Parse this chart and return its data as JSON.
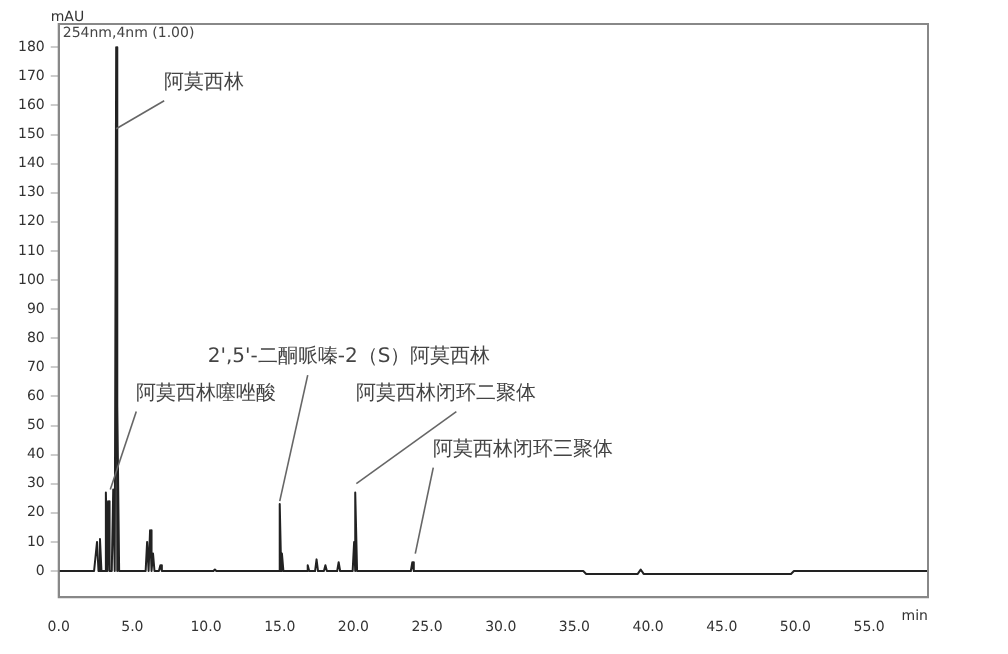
{
  "chart_data": {
    "type": "line",
    "xlabel": "min",
    "ylabel": "mAU",
    "x": [
      0,
      2.4,
      2.5,
      2.6,
      2.7,
      2.8,
      2.9,
      3.1,
      3.2,
      3.3,
      3.35,
      3.45,
      3.6,
      3.7,
      3.8,
      3.85,
      3.9,
      3.95,
      4.0,
      4.1,
      5.9,
      6.0,
      6.1,
      6.2,
      6.3,
      6.4,
      6.5,
      6.8,
      6.9,
      7.0,
      10.5,
      10.6,
      10.7,
      14.9,
      15.0,
      15.1,
      15.15,
      15.25,
      16.8,
      16.9,
      17.0,
      17.4,
      17.5,
      17.6,
      18.0,
      18.1,
      18.2,
      18.9,
      19.0,
      19.1,
      19.95,
      20.05,
      20.1,
      20.15,
      20.25,
      23.9,
      24.0,
      24.1,
      35.6,
      35.8,
      39.3,
      39.5,
      39.7,
      49.7,
      49.9,
      59
    ],
    "series": [
      {
        "color": "#222222",
        "values": [
          0,
          0,
          0,
          10,
          0,
          11,
          0,
          0,
          27,
          0,
          24,
          0,
          0,
          28,
          0,
          0,
          180,
          0,
          57,
          0,
          0,
          10,
          0,
          14,
          0,
          6,
          0,
          0,
          2,
          0,
          0,
          0.5,
          0,
          0,
          23,
          0,
          6,
          0,
          0,
          2,
          0,
          0,
          4,
          0,
          0,
          2,
          0,
          0,
          3,
          0,
          0,
          10,
          0,
          27,
          0,
          0,
          3,
          0,
          0,
          -1,
          -1,
          0.5,
          -1,
          -1,
          0,
          0
        ]
      }
    ],
    "xlim": [
      0,
      59
    ],
    "ylim": [
      -9,
      188
    ],
    "xticks": [
      {
        "value": 0,
        "label": "0.0"
      },
      {
        "value": 5,
        "label": "5.0"
      },
      {
        "value": 10,
        "label": "10.0"
      },
      {
        "value": 15,
        "label": "15.0"
      },
      {
        "value": 20,
        "label": "20.0"
      },
      {
        "value": 25,
        "label": "25.0"
      },
      {
        "value": 30,
        "label": "30.0"
      },
      {
        "value": 35,
        "label": "35.0"
      },
      {
        "value": 40,
        "label": "40.0"
      },
      {
        "value": 45,
        "label": "45.0"
      },
      {
        "value": 50,
        "label": "50.0"
      },
      {
        "value": 55,
        "label": "55.0"
      }
    ],
    "yticks": [
      0,
      10,
      20,
      30,
      40,
      50,
      60,
      70,
      80,
      90,
      100,
      110,
      120,
      130,
      140,
      150,
      160,
      170,
      180
    ],
    "grid": false,
    "legend": false,
    "annotations": [
      {
        "text": "阿莫西林",
        "x": 3.9,
        "y": 152
      },
      {
        "text": "阿莫西林噻唑酸",
        "x": 3.5,
        "y": 28
      },
      {
        "text": "2',5'-二酮哌嗪-2（S）阿莫西林",
        "x": 15.0,
        "y": 24
      },
      {
        "text": "阿莫西林闭环二聚体",
        "x": 20.2,
        "y": 30
      },
      {
        "text": "阿莫西林闭环三聚体",
        "x": 24.2,
        "y": 6
      },
      "254nm,4nm (1.00)"
    ]
  }
}
